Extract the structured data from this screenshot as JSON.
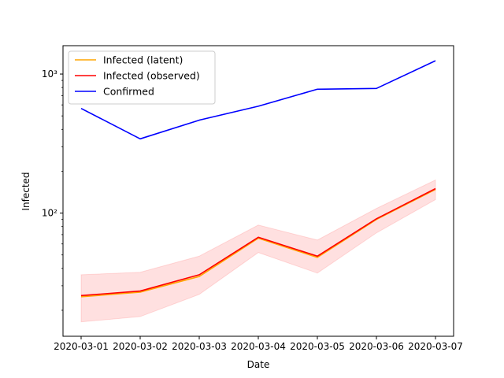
{
  "chart_data": {
    "type": "line",
    "title": "",
    "xlabel": "Date",
    "ylabel": "Infected",
    "yscale": "log",
    "ylim": [
      13,
      1600
    ],
    "x": [
      "2020-03-01",
      "2020-03-02",
      "2020-03-03",
      "2020-03-04",
      "2020-03-05",
      "2020-03-06",
      "2020-03-07"
    ],
    "y_ticks": [
      {
        "value": 100,
        "label": "10²"
      },
      {
        "value": 1000,
        "label": "10³"
      }
    ],
    "grid": false,
    "legend": {
      "placement": "top-left"
    },
    "series": [
      {
        "name": "Infected (latent)",
        "color": "#ffa500",
        "values": [
          25,
          27,
          35,
          66,
          48,
          90,
          148
        ]
      },
      {
        "name": "Infected (observed)",
        "color": "#ff0000",
        "values": [
          25.5,
          27.5,
          36,
          67,
          49,
          91,
          150
        ]
      },
      {
        "name": "Confirmed",
        "color": "#0000ff",
        "values": [
          566,
          342,
          466,
          587,
          778,
          788,
          1247
        ]
      }
    ],
    "band": {
      "color": "#ff0000",
      "opacity": 0.12,
      "lower": [
        16.5,
        18,
        26,
        52,
        37,
        72,
        125
      ],
      "upper": [
        36,
        37.5,
        49,
        82,
        64,
        108,
        173
      ]
    }
  }
}
